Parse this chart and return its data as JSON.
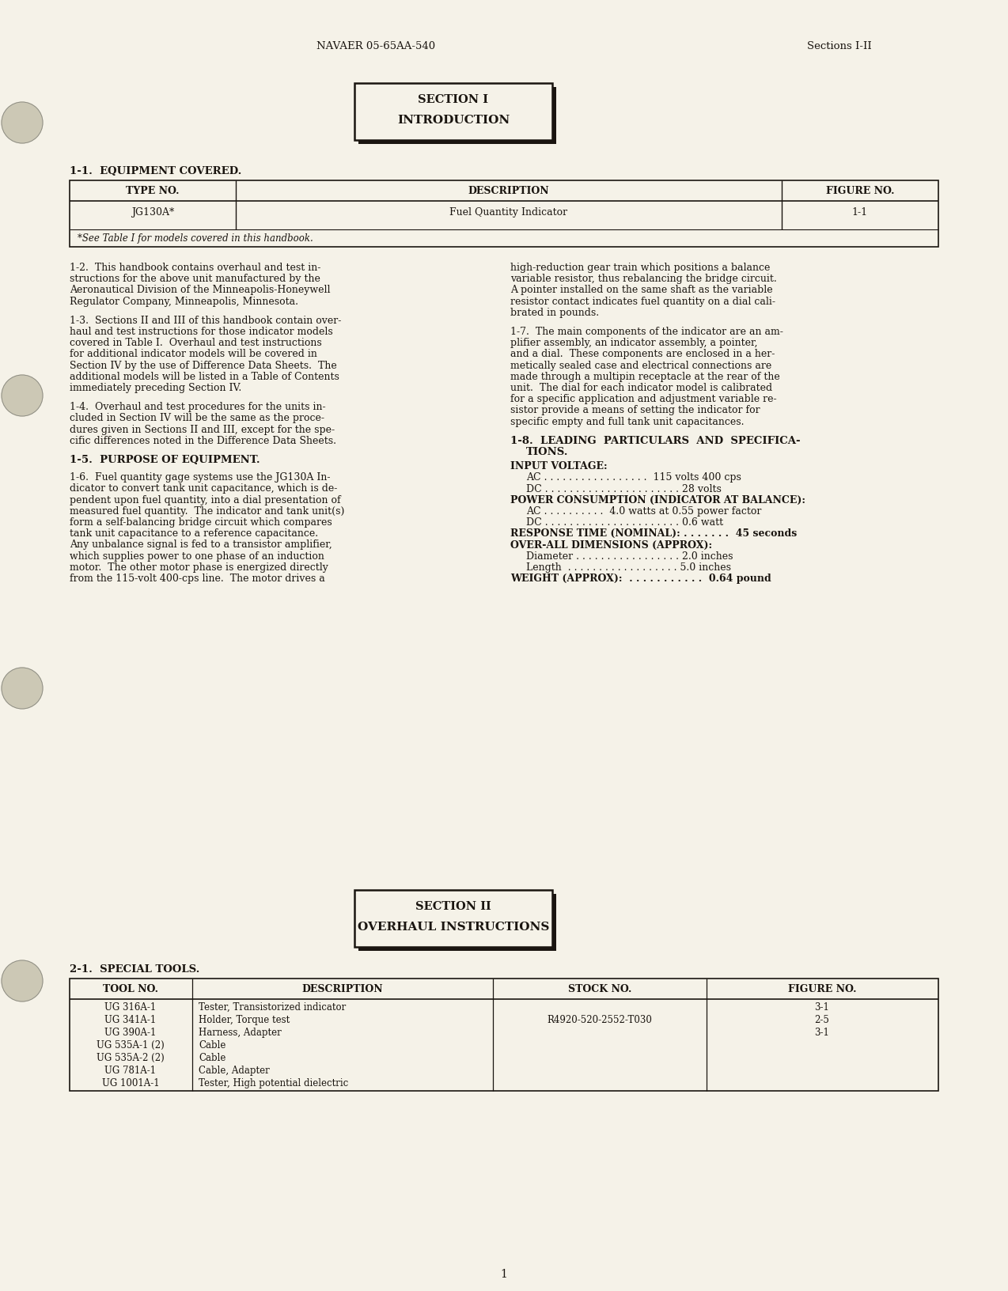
{
  "bg_color": "#f5f2e8",
  "text_color": "#1a1510",
  "header_left": "NAVAER 05-65AA-540",
  "header_right": "Sections I-II",
  "section1_line1": "SECTION I",
  "section1_line2": "INTRODUCTION",
  "section2_line1": "SECTION II",
  "section2_line2": "OVERHAUL INSTRUCTIONS",
  "heading_11": "1-1.  EQUIPMENT COVERED.",
  "table1_headers": [
    "TYPE NO.",
    "DESCRIPTION",
    "FIGURE NO."
  ],
  "table1_row": [
    "JG130A*",
    "Fuel Quantity Indicator",
    "1-1"
  ],
  "table1_note": "*See Table I for models covered in this handbook.",
  "para_12_lines": [
    "1-2.  This handbook contains overhaul and test in-",
    "structions for the above unit manufactured by the",
    "Aeronautical Division of the Minneapolis-Honeywell",
    "Regulator Company, Minneapolis, Minnesota."
  ],
  "para_13_lines": [
    "1-3.  Sections II and III of this handbook contain over-",
    "haul and test instructions for those indicator models",
    "covered in Table I.  Overhaul and test instructions",
    "for additional indicator models will be covered in",
    "Section IV by the use of Difference Data Sheets.  The",
    "additional models will be listed in a Table of Contents",
    "immediately preceding Section IV."
  ],
  "para_14_lines": [
    "1-4.  Overhaul and test procedures for the units in-",
    "cluded in Section IV will be the same as the proce-",
    "dures given in Sections II and III, except for the spe-",
    "cific differences noted in the Difference Data Sheets."
  ],
  "heading_15": "1-5.  PURPOSE OF EQUIPMENT.",
  "para_16_lines": [
    "1-6.  Fuel quantity gage systems use the JG130A In-",
    "dicator to convert tank unit capacitance, which is de-",
    "pendent upon fuel quantity, into a dial presentation of",
    "measured fuel quantity.  The indicator and tank unit(s)",
    "form a self-balancing bridge circuit which compares",
    "tank unit capacitance to a reference capacitance.",
    "Any unbalance signal is fed to a transistor amplifier,",
    "which supplies power to one phase of an induction",
    "motor.  The other motor phase is energized directly",
    "from the 115-volt 400-cps line.  The motor drives a"
  ],
  "para_16r_lines": [
    "high-reduction gear train which positions a balance",
    "variable resistor, thus rebalancing the bridge circuit.",
    "A pointer installed on the same shaft as the variable",
    "resistor contact indicates fuel quantity on a dial cali-",
    "brated in pounds."
  ],
  "para_17_lines": [
    "1-7.  The main components of the indicator are an am-",
    "plifier assembly, an indicator assembly, a pointer,",
    "and a dial.  These components are enclosed in a her-",
    "metically sealed case and electrical connections are",
    "made through a multipin receptacle at the rear of the",
    "unit.  The dial for each indicator model is calibrated",
    "for a specific application and adjustment variable re-",
    "sistor provide a means of setting the indicator for",
    "specific empty and full tank unit capacitances."
  ],
  "heading_18_line1": "1-8.  LEADING  PARTICULARS  AND  SPECIFICA-",
  "heading_18_line2": "TIONS.",
  "spec_lines": [
    [
      "bold",
      "INPUT VOLTAGE:"
    ],
    [
      "normal",
      "AC . . . . . . . . . . . . . . . . .  115 volts 400 cps"
    ],
    [
      "normal",
      "DC . . . . . . . . . . . . . . . . . . . . . . 28 volts"
    ],
    [
      "bold",
      "POWER CONSUMPTION (INDICATOR AT BALANCE):"
    ],
    [
      "normal",
      "AC . . . . . . . . . .  4.0 watts at 0.55 power factor"
    ],
    [
      "normal",
      "DC . . . . . . . . . . . . . . . . . . . . . . 0.6 watt"
    ],
    [
      "bold",
      "RESPONSE TIME (NOMINAL): . . . . . . .  45 seconds"
    ],
    [
      "bold",
      "OVER-ALL DIMENSIONS (APPROX):"
    ],
    [
      "normal",
      "Diameter . . . . . . . . . . . . . . . . . 2.0 inches"
    ],
    [
      "normal",
      "Length  . . . . . . . . . . . . . . . . . . 5.0 inches"
    ],
    [
      "bold",
      "WEIGHT (APPROX):  . . . . . . . . . . .  0.64 pound"
    ]
  ],
  "heading_21": "2-1.  SPECIAL TOOLS.",
  "table2_headers": [
    "TOOL NO.",
    "DESCRIPTION",
    "STOCK NO.",
    "FIGURE NO."
  ],
  "table2_rows": [
    [
      "UG 316A-1",
      "Tester, Transistorized indicator",
      "",
      "3-1"
    ],
    [
      "UG 341A-1",
      "Holder, Torque test",
      "R4920-520-2552-T030",
      "2-5"
    ],
    [
      "UG 390A-1",
      "Harness, Adapter",
      "",
      "3-1"
    ],
    [
      "UG 535A-1 (2)",
      "Cable",
      "",
      ""
    ],
    [
      "UG 535A-2 (2)",
      "Cable",
      "",
      ""
    ],
    [
      "UG 781A-1",
      "Cable, Adapter",
      "",
      ""
    ],
    [
      "UG 1001A-1",
      "Tester, High potential dielectric",
      "",
      ""
    ]
  ],
  "page_number": "1"
}
